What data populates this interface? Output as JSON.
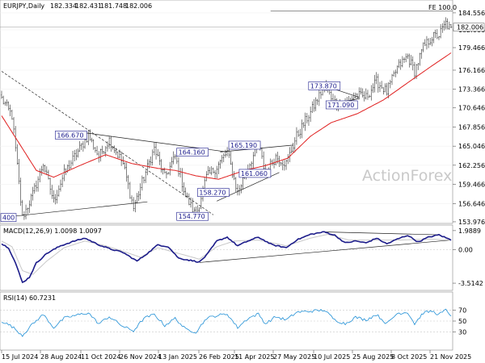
{
  "chart_data": [
    {
      "type": "candlestick",
      "panel": "price",
      "title": "EURJPY,Daily",
      "ohlc_readout": [
        "182.334",
        "182.431",
        "181.748",
        "182.006"
      ],
      "last_price_label": "182.006",
      "fe_label": "FE 100.0",
      "fe_level": 184.8,
      "watermark": "ActionForex",
      "ylim": [
        153.97,
        186.2
      ],
      "y_ticks": [
        "184.556",
        "182.066",
        "179.466",
        "176.166",
        "173.366",
        "170.646",
        "167.856",
        "165.046",
        "162.256",
        "159.466",
        "156.646",
        "153.976"
      ],
      "y_tick_values": [
        184.556,
        182.066,
        179.466,
        176.166,
        173.366,
        170.646,
        167.856,
        165.046,
        162.256,
        159.466,
        156.646,
        153.976
      ],
      "x_ticks": [
        "15 Jul 2024",
        "28 Aug 2024",
        "11 Oct 2024",
        "26 Nov 2024",
        "13 Jan 2025",
        "26 Feb 2025",
        "11 Apr 2025",
        "27 May 2025",
        "10 Jul 2025",
        "25 Aug 2025",
        "8 Oct 2025",
        "21 Nov 2025"
      ],
      "level_labels": [
        {
          "text": "166.670",
          "i": 40,
          "v": 166.67
        },
        {
          "text": "164.160",
          "i": 110,
          "v": 164.16
        },
        {
          "text": "165.190",
          "i": 140,
          "v": 165.19
        },
        {
          "text": "161.060",
          "i": 146,
          "v": 161.06
        },
        {
          "text": "158.270",
          "i": 122,
          "v": 158.27
        },
        {
          "text": "154.770",
          "i": 110,
          "v": 154.77
        },
        {
          "text": "173.870",
          "i": 186,
          "v": 173.87
        },
        {
          "text": "171.090",
          "i": 196,
          "v": 171.09
        },
        {
          "text": "400",
          "i": 0,
          "v": 154.6
        }
      ],
      "key_points": [
        {
          "i": 0,
          "v": 172.0
        },
        {
          "i": 6,
          "v": 169.5
        },
        {
          "i": 12,
          "v": 154.6
        },
        {
          "i": 18,
          "v": 158.0
        },
        {
          "i": 24,
          "v": 162.5
        },
        {
          "i": 30,
          "v": 157.0
        },
        {
          "i": 36,
          "v": 161.0
        },
        {
          "i": 42,
          "v": 163.5
        },
        {
          "i": 50,
          "v": 166.67
        },
        {
          "i": 56,
          "v": 163.5
        },
        {
          "i": 62,
          "v": 166.0
        },
        {
          "i": 70,
          "v": 162.5
        },
        {
          "i": 76,
          "v": 156.0
        },
        {
          "i": 82,
          "v": 160.5
        },
        {
          "i": 88,
          "v": 164.7
        },
        {
          "i": 94,
          "v": 160.5
        },
        {
          "i": 100,
          "v": 163.5
        },
        {
          "i": 106,
          "v": 157.8
        },
        {
          "i": 112,
          "v": 154.77
        },
        {
          "i": 118,
          "v": 160.5
        },
        {
          "i": 124,
          "v": 162.0
        },
        {
          "i": 130,
          "v": 164.16
        },
        {
          "i": 136,
          "v": 158.27
        },
        {
          "i": 142,
          "v": 162.0
        },
        {
          "i": 148,
          "v": 165.19
        },
        {
          "i": 152,
          "v": 161.06
        },
        {
          "i": 158,
          "v": 163.5
        },
        {
          "i": 164,
          "v": 162.5
        },
        {
          "i": 170,
          "v": 166.5
        },
        {
          "i": 178,
          "v": 170.0
        },
        {
          "i": 186,
          "v": 173.87
        },
        {
          "i": 192,
          "v": 171.5
        },
        {
          "i": 198,
          "v": 171.09
        },
        {
          "i": 204,
          "v": 172.5
        },
        {
          "i": 210,
          "v": 172.2
        },
        {
          "i": 216,
          "v": 174.5
        },
        {
          "i": 222,
          "v": 173.0
        },
        {
          "i": 228,
          "v": 176.5
        },
        {
          "i": 234,
          "v": 178.2
        },
        {
          "i": 238,
          "v": 176.0
        },
        {
          "i": 243,
          "v": 179.5
        },
        {
          "i": 248,
          "v": 181.0
        },
        {
          "i": 252,
          "v": 181.3
        },
        {
          "i": 256,
          "v": 183.0
        },
        {
          "i": 259,
          "v": 182.006
        }
      ],
      "ma_points": [
        {
          "i": 0,
          "v": 169.5
        },
        {
          "i": 10,
          "v": 165.5
        },
        {
          "i": 20,
          "v": 161.5
        },
        {
          "i": 30,
          "v": 160.5
        },
        {
          "i": 45,
          "v": 162.2
        },
        {
          "i": 60,
          "v": 163.8
        },
        {
          "i": 75,
          "v": 162.5
        },
        {
          "i": 90,
          "v": 161.8
        },
        {
          "i": 100,
          "v": 161.5
        },
        {
          "i": 112,
          "v": 160.7
        },
        {
          "i": 125,
          "v": 160.2
        },
        {
          "i": 140,
          "v": 161.5
        },
        {
          "i": 152,
          "v": 162.2
        },
        {
          "i": 165,
          "v": 163.3
        },
        {
          "i": 178,
          "v": 166.5
        },
        {
          "i": 190,
          "v": 168.5
        },
        {
          "i": 205,
          "v": 169.8
        },
        {
          "i": 220,
          "v": 171.8
        },
        {
          "i": 235,
          "v": 174.5
        },
        {
          "i": 248,
          "v": 176.8
        },
        {
          "i": 259,
          "v": 178.7
        }
      ],
      "trendlines": [
        [
          {
            "i": 48,
            "v": 167.0
          },
          {
            "i": 130,
            "v": 164.2
          }
        ],
        [
          {
            "i": 0,
            "v": 154.6
          },
          {
            "i": 84,
            "v": 156.9
          }
        ],
        [
          {
            "i": 0,
            "v": 176.0
          },
          {
            "i": 122,
            "v": 155.0
          }
        ],
        [
          {
            "i": 126,
            "v": 164.2
          },
          {
            "i": 168,
            "v": 165.2
          }
        ],
        [
          {
            "i": 124,
            "v": 157.0
          },
          {
            "i": 160,
            "v": 161.2
          }
        ],
        [
          {
            "i": 186,
            "v": 173.87
          },
          {
            "i": 206,
            "v": 172.2
          }
        ],
        [
          {
            "i": 188,
            "v": 171.09
          },
          {
            "i": 206,
            "v": 172.0
          }
        ]
      ],
      "fe_line_start_i": 155
    },
    {
      "type": "line",
      "panel": "macd",
      "label": "MACD(12,26,9) 1.0098 1.0097",
      "ylim": [
        -4.1,
        2.4
      ],
      "y_ticks": [
        "1.9889",
        "0.00",
        "-3.5142"
      ],
      "y_tick_values": [
        1.9889,
        0.0,
        -3.5142
      ],
      "macd_points": [
        {
          "i": 0,
          "v": 0.6
        },
        {
          "i": 4,
          "v": 0.2
        },
        {
          "i": 8,
          "v": -1.4
        },
        {
          "i": 12,
          "v": -3.45
        },
        {
          "i": 16,
          "v": -2.9
        },
        {
          "i": 20,
          "v": -1.4
        },
        {
          "i": 26,
          "v": -0.4
        },
        {
          "i": 34,
          "v": 0.4
        },
        {
          "i": 42,
          "v": 0.9
        },
        {
          "i": 48,
          "v": 1.2
        },
        {
          "i": 56,
          "v": 0.5
        },
        {
          "i": 62,
          "v": 0.1
        },
        {
          "i": 70,
          "v": -0.3
        },
        {
          "i": 78,
          "v": -1.2
        },
        {
          "i": 84,
          "v": -0.4
        },
        {
          "i": 90,
          "v": 0.5
        },
        {
          "i": 96,
          "v": 0.3
        },
        {
          "i": 102,
          "v": -0.9
        },
        {
          "i": 108,
          "v": -1.1
        },
        {
          "i": 114,
          "v": -1.3
        },
        {
          "i": 118,
          "v": -0.6
        },
        {
          "i": 124,
          "v": 0.9
        },
        {
          "i": 130,
          "v": 1.3
        },
        {
          "i": 136,
          "v": 0.4
        },
        {
          "i": 142,
          "v": 0.9
        },
        {
          "i": 148,
          "v": 1.3
        },
        {
          "i": 156,
          "v": 0.5
        },
        {
          "i": 164,
          "v": 0.2
        },
        {
          "i": 170,
          "v": 1.0
        },
        {
          "i": 178,
          "v": 1.6
        },
        {
          "i": 186,
          "v": 1.85
        },
        {
          "i": 192,
          "v": 1.5
        },
        {
          "i": 198,
          "v": 0.7
        },
        {
          "i": 204,
          "v": 0.9
        },
        {
          "i": 210,
          "v": 0.7
        },
        {
          "i": 216,
          "v": 1.2
        },
        {
          "i": 222,
          "v": 0.6
        },
        {
          "i": 228,
          "v": 1.1
        },
        {
          "i": 234,
          "v": 1.5
        },
        {
          "i": 240,
          "v": 0.8
        },
        {
          "i": 246,
          "v": 1.3
        },
        {
          "i": 252,
          "v": 1.55
        },
        {
          "i": 259,
          "v": 1.01
        }
      ],
      "signal_points": [
        {
          "i": 0,
          "v": 0.9
        },
        {
          "i": 6,
          "v": 0.3
        },
        {
          "i": 12,
          "v": -2.2
        },
        {
          "i": 18,
          "v": -2.6
        },
        {
          "i": 26,
          "v": -1.2
        },
        {
          "i": 36,
          "v": 0.2
        },
        {
          "i": 48,
          "v": 0.9
        },
        {
          "i": 60,
          "v": 0.4
        },
        {
          "i": 72,
          "v": -0.3
        },
        {
          "i": 80,
          "v": -0.8
        },
        {
          "i": 90,
          "v": 0.2
        },
        {
          "i": 102,
          "v": -0.4
        },
        {
          "i": 114,
          "v": -1.0
        },
        {
          "i": 124,
          "v": 0.3
        },
        {
          "i": 134,
          "v": 0.9
        },
        {
          "i": 148,
          "v": 1.0
        },
        {
          "i": 164,
          "v": 0.4
        },
        {
          "i": 178,
          "v": 1.2
        },
        {
          "i": 188,
          "v": 1.6
        },
        {
          "i": 200,
          "v": 1.0
        },
        {
          "i": 216,
          "v": 1.0
        },
        {
          "i": 230,
          "v": 1.0
        },
        {
          "i": 246,
          "v": 1.1
        },
        {
          "i": 259,
          "v": 1.01
        }
      ],
      "trendlines": [
        [
          {
            "i": 114,
            "v": -1.35
          },
          {
            "i": 259,
            "v": 1.0
          }
        ],
        [
          {
            "i": 186,
            "v": 1.85
          },
          {
            "i": 252,
            "v": 1.55
          }
        ]
      ]
    },
    {
      "type": "line",
      "panel": "rsi",
      "label": "RSI(14) 60.7231",
      "ylim": [
        0,
        100
      ],
      "y_ticks": [
        "70",
        "50",
        "30"
      ],
      "y_tick_values": [
        70,
        50,
        30
      ],
      "rsi_points": [
        {
          "i": 0,
          "v": 50
        },
        {
          "i": 6,
          "v": 40
        },
        {
          "i": 12,
          "v": 24
        },
        {
          "i": 18,
          "v": 45
        },
        {
          "i": 24,
          "v": 62
        },
        {
          "i": 30,
          "v": 38
        },
        {
          "i": 36,
          "v": 55
        },
        {
          "i": 42,
          "v": 60
        },
        {
          "i": 50,
          "v": 65
        },
        {
          "i": 56,
          "v": 45
        },
        {
          "i": 62,
          "v": 58
        },
        {
          "i": 70,
          "v": 40
        },
        {
          "i": 76,
          "v": 32
        },
        {
          "i": 82,
          "v": 55
        },
        {
          "i": 88,
          "v": 62
        },
        {
          "i": 94,
          "v": 42
        },
        {
          "i": 100,
          "v": 55
        },
        {
          "i": 106,
          "v": 35
        },
        {
          "i": 112,
          "v": 30
        },
        {
          "i": 118,
          "v": 55
        },
        {
          "i": 124,
          "v": 60
        },
        {
          "i": 130,
          "v": 63
        },
        {
          "i": 136,
          "v": 38
        },
        {
          "i": 142,
          "v": 55
        },
        {
          "i": 148,
          "v": 63
        },
        {
          "i": 152,
          "v": 45
        },
        {
          "i": 158,
          "v": 58
        },
        {
          "i": 164,
          "v": 52
        },
        {
          "i": 170,
          "v": 66
        },
        {
          "i": 178,
          "v": 68
        },
        {
          "i": 186,
          "v": 70
        },
        {
          "i": 192,
          "v": 52
        },
        {
          "i": 198,
          "v": 45
        },
        {
          "i": 204,
          "v": 57
        },
        {
          "i": 210,
          "v": 52
        },
        {
          "i": 216,
          "v": 62
        },
        {
          "i": 222,
          "v": 45
        },
        {
          "i": 228,
          "v": 64
        },
        {
          "i": 234,
          "v": 66
        },
        {
          "i": 238,
          "v": 45
        },
        {
          "i": 243,
          "v": 65
        },
        {
          "i": 248,
          "v": 68
        },
        {
          "i": 252,
          "v": 62
        },
        {
          "i": 256,
          "v": 70
        },
        {
          "i": 259,
          "v": 60.7
        }
      ]
    }
  ]
}
